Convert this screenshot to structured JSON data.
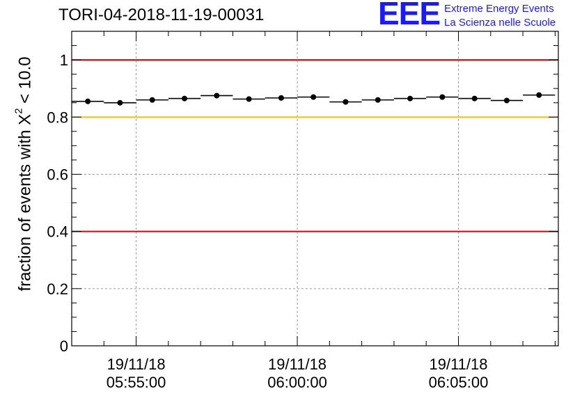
{
  "header": {
    "run_id": "TORI-04-2018-11-19-00031"
  },
  "logo": {
    "mark": "EEE",
    "line1": "Extreme Energy Events",
    "line2": "La Scienza nelle Scuole",
    "color": "#1a1aff"
  },
  "chart_data": {
    "type": "scatter",
    "title": "TORI-04-2018-11-19-00031",
    "xlabel": "",
    "ylabel_prefix": "fraction of events with Χ",
    "ylabel_sup": "2",
    "ylabel_suffix": " < 10.0",
    "x_unit": "minutes since 05:53:00",
    "xlim": [
      0,
      15.1
    ],
    "ylim": [
      0,
      1.1
    ],
    "yticks": [
      0,
      0.2,
      0.4,
      0.6,
      0.8,
      1
    ],
    "ytick_labels": [
      "0",
      "0.2",
      "0.4",
      "0.6",
      "0.8",
      "1"
    ],
    "xticks": [
      {
        "x": 2,
        "date": "19/11/18",
        "time": "05:55:00"
      },
      {
        "x": 7,
        "date": "19/11/18",
        "time": "06:00:00"
      },
      {
        "x": 12,
        "date": "19/11/18",
        "time": "06:05:00"
      }
    ],
    "grid": true,
    "reference_lines": [
      {
        "y": 1.0,
        "color": "#e00000"
      },
      {
        "y": 0.8,
        "color": "#ffc000"
      },
      {
        "y": 0.4,
        "color": "#e00000"
      }
    ],
    "bin_halfwidth": 0.5,
    "points": [
      {
        "x": 0.5,
        "y": 0.855
      },
      {
        "x": 1.5,
        "y": 0.85
      },
      {
        "x": 2.5,
        "y": 0.86
      },
      {
        "x": 3.5,
        "y": 0.865
      },
      {
        "x": 4.5,
        "y": 0.875
      },
      {
        "x": 5.5,
        "y": 0.863
      },
      {
        "x": 6.5,
        "y": 0.867
      },
      {
        "x": 7.5,
        "y": 0.87
      },
      {
        "x": 8.5,
        "y": 0.853
      },
      {
        "x": 9.5,
        "y": 0.86
      },
      {
        "x": 10.5,
        "y": 0.865
      },
      {
        "x": 11.5,
        "y": 0.87
      },
      {
        "x": 12.5,
        "y": 0.865
      },
      {
        "x": 13.5,
        "y": 0.858
      },
      {
        "x": 14.5,
        "y": 0.877
      }
    ]
  }
}
